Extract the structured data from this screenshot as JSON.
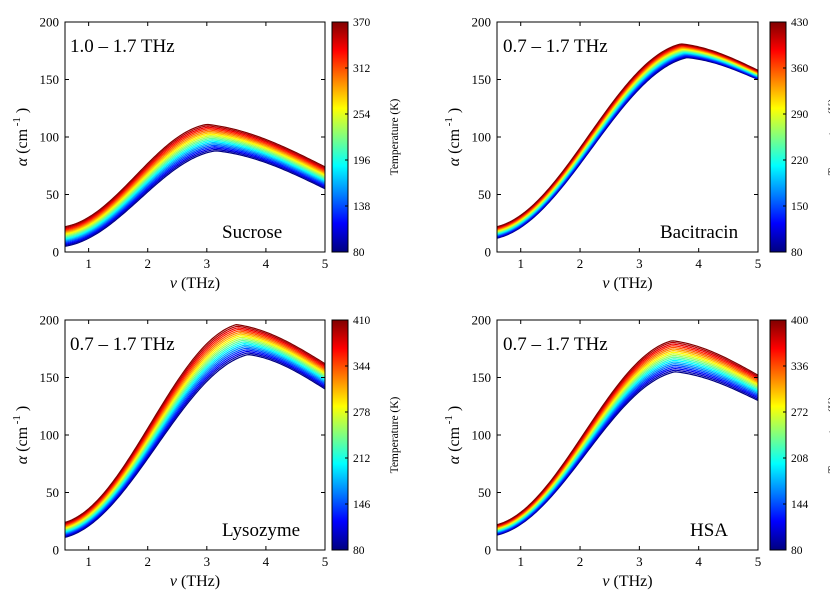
{
  "chart_data": [
    {
      "type": "line",
      "sample": "Sucrose",
      "range_label": "1.0 – 1.7 THz",
      "xlabel": "ν (THz)",
      "ylabel": "α (cm",
      "ylabel_sup": "-1",
      "ylabel_close": ")",
      "xlim": [
        0.6,
        5
      ],
      "ylim": [
        0,
        200
      ],
      "xticks": [
        1,
        2,
        3,
        4,
        5
      ],
      "yticks": [
        0,
        50,
        100,
        150,
        200
      ],
      "curve_model": {
        "alpha_start": [
          5,
          22
        ],
        "alpha_peak": [
          88,
          111
        ],
        "alpha_end": [
          55,
          74
        ],
        "peak_nu": [
          3.15,
          3.0
        ]
      },
      "colorbar": {
        "label": "Temperature (K)",
        "ticks": [
          80,
          138,
          196,
          254,
          312,
          370
        ],
        "range": [
          80,
          370
        ]
      },
      "series_count": 20
    },
    {
      "type": "line",
      "sample": "Bacitracin",
      "range_label": "0.7 – 1.7 THz",
      "xlabel": "ν (THz)",
      "ylabel": "α (cm",
      "ylabel_sup": "-1",
      "ylabel_close": ")",
      "xlim": [
        0.6,
        5
      ],
      "ylim": [
        0,
        200
      ],
      "xticks": [
        1,
        2,
        3,
        4,
        5
      ],
      "yticks": [
        0,
        50,
        100,
        150,
        200
      ],
      "curve_model": {
        "alpha_start": [
          12,
          22
        ],
        "alpha_peak": [
          169,
          181
        ],
        "alpha_end": [
          150,
          158
        ],
        "peak_nu": [
          3.8,
          3.7
        ]
      },
      "colorbar": {
        "label": "Temperature (K)",
        "ticks": [
          80,
          150,
          220,
          290,
          360,
          430
        ],
        "range": [
          80,
          430
        ]
      },
      "series_count": 20
    },
    {
      "type": "line",
      "sample": "Lysozyme",
      "range_label": "0.7 – 1.7 THz",
      "xlabel": "ν (THz)",
      "ylabel": "α (cm",
      "ylabel_sup": "-1",
      "ylabel_close": ")",
      "xlim": [
        0.6,
        5
      ],
      "ylim": [
        0,
        200
      ],
      "xticks": [
        1,
        2,
        3,
        4,
        5
      ],
      "yticks": [
        0,
        50,
        100,
        150,
        200
      ],
      "curve_model": {
        "alpha_start": [
          11,
          24
        ],
        "alpha_peak": [
          170,
          196
        ],
        "alpha_end": [
          140,
          162
        ],
        "peak_nu": [
          3.7,
          3.5
        ]
      },
      "colorbar": {
        "label": "Temperature (K)",
        "ticks": [
          80,
          146,
          212,
          278,
          344,
          410
        ],
        "range": [
          80,
          410
        ]
      },
      "series_count": 20
    },
    {
      "type": "line",
      "sample": "HSA",
      "range_label": "0.7 – 1.7 THz",
      "xlabel": "ν (THz)",
      "ylabel": "α (cm",
      "ylabel_sup": "-1",
      "ylabel_close": ")",
      "xlim": [
        0.6,
        5
      ],
      "ylim": [
        0,
        200
      ],
      "xticks": [
        1,
        2,
        3,
        4,
        5
      ],
      "yticks": [
        0,
        50,
        100,
        150,
        200
      ],
      "curve_model": {
        "alpha_start": [
          13,
          22
        ],
        "alpha_peak": [
          155,
          182
        ],
        "alpha_end": [
          130,
          152
        ],
        "peak_nu": [
          3.6,
          3.55
        ]
      },
      "colorbar": {
        "label": "Temperature (K)",
        "ticks": [
          80,
          144,
          208,
          272,
          336,
          400
        ],
        "range": [
          80,
          400
        ]
      },
      "series_count": 20
    }
  ]
}
